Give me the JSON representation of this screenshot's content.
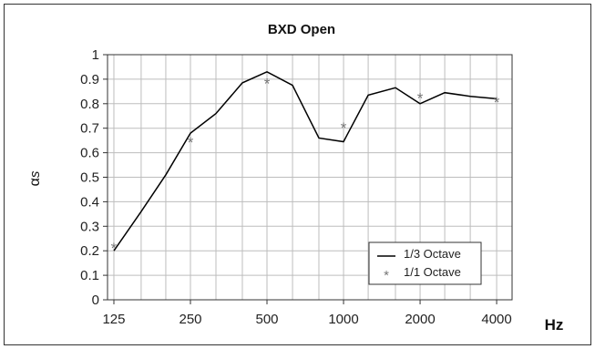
{
  "chart_data": {
    "type": "line",
    "title": "BXD Open",
    "ylabel": "αs",
    "xlabel": "Hz",
    "x_scale": "log",
    "xlim": [
      118,
      4600
    ],
    "ylim": [
      0,
      1
    ],
    "y_ticks": [
      "0",
      "0.1",
      "0.2",
      "0.3",
      "0.4",
      "0.5",
      "0.6",
      "0.7",
      "0.8",
      "0.9",
      "1"
    ],
    "x_tick_values": [
      125,
      250,
      500,
      1000,
      2000,
      4000
    ],
    "x_tick_labels": [
      "125",
      "250",
      "500",
      "1000",
      "2000",
      "4000"
    ],
    "grid": true,
    "legend_position": "bottom-right",
    "series": [
      {
        "name": "1/3 Octave",
        "style": "line",
        "color": "#000000",
        "x": [
          125,
          160,
          200,
          250,
          315,
          400,
          500,
          630,
          800,
          1000,
          1250,
          1600,
          2000,
          2500,
          3150,
          4000
        ],
        "y": [
          0.2,
          0.36,
          0.51,
          0.68,
          0.76,
          0.885,
          0.93,
          0.875,
          0.66,
          0.645,
          0.835,
          0.865,
          0.8,
          0.845,
          0.83,
          0.82
        ]
      },
      {
        "name": "1/1 Octave",
        "style": "markers",
        "marker": "*",
        "color": "#777777",
        "x": [
          125,
          250,
          500,
          1000,
          2000,
          4000
        ],
        "y": [
          0.22,
          0.65,
          0.89,
          0.71,
          0.83,
          0.815
        ]
      }
    ]
  }
}
